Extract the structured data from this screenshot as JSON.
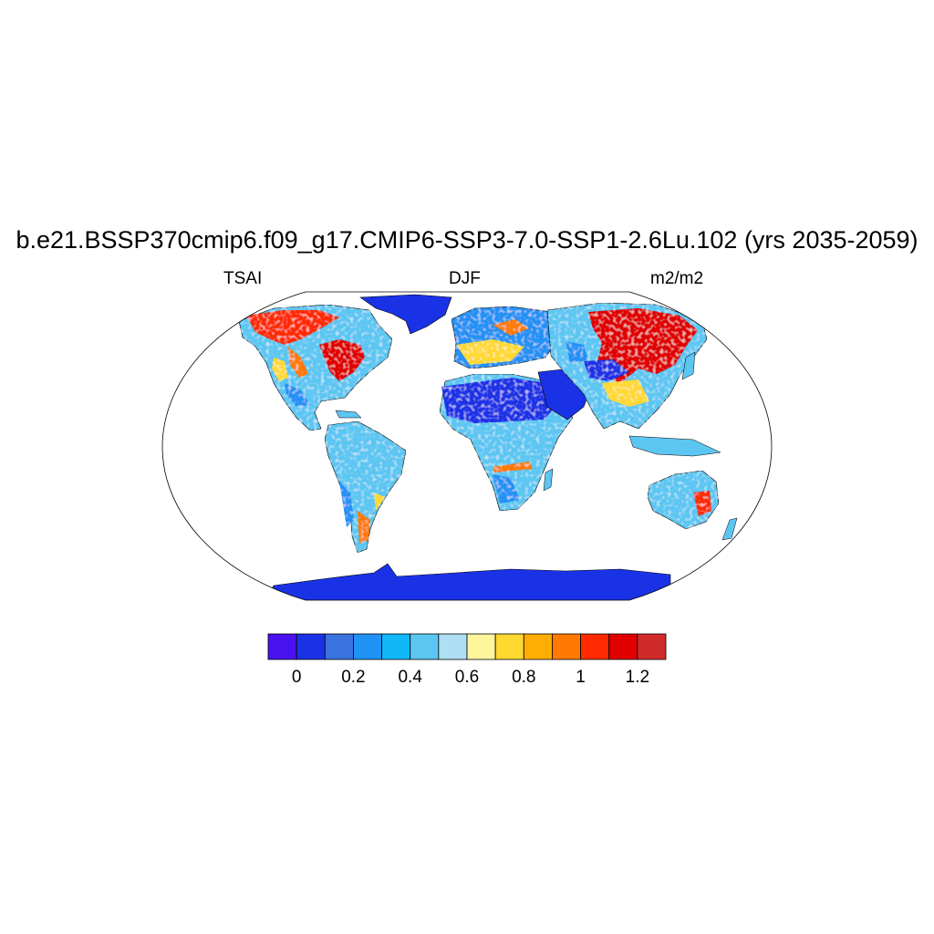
{
  "title": "b.e21.BSSP370cmip6.f09_g17.CMIP6-SSP3-7.0-SSP1-2.6Lu.102 (yrs 2035-2059)",
  "subtitle": {
    "left": "TSAI",
    "center": "DJF",
    "right": "m2/m2"
  },
  "colorbar": {
    "colors": [
      "#4a12f0",
      "#1a32e6",
      "#3a72e0",
      "#2091f5",
      "#10b8f8",
      "#5cc6f2",
      "#aedff2",
      "#fff59c",
      "#ffd830",
      "#ffad00",
      "#ff7a00",
      "#ff2a00",
      "#e00000",
      "#d12a2a"
    ],
    "tick_labels": [
      "0",
      "0.2",
      "0.4",
      "0.6",
      "0.8",
      "1",
      "1.2"
    ]
  }
}
